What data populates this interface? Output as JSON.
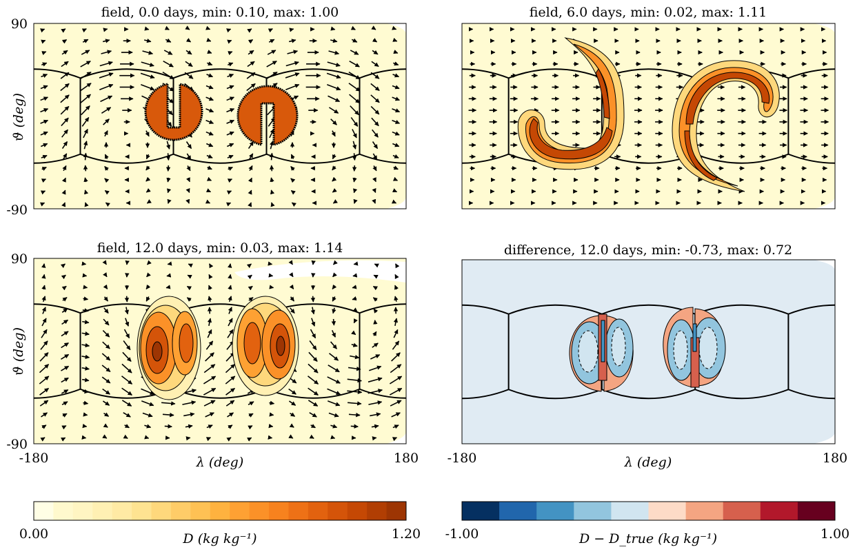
{
  "chart_data": [
    {
      "type": "heatmap",
      "title": "field, 0.0 days, min: 0.10, max: 1.00",
      "ylabel": "ϑ (deg)",
      "xlabel": "",
      "xlim": [
        -180,
        180
      ],
      "ylim": [
        -90,
        90
      ],
      "yticks": [
        "90",
        "-90"
      ],
      "xticks": [],
      "colormap": "YlOrBr",
      "min": 0.1,
      "max": 1.0,
      "features": [
        {
          "kind": "slotted-cylinder",
          "center": [
            -60,
            10
          ],
          "radius": 28,
          "value": 1.0,
          "slot": "up"
        },
        {
          "kind": "slotted-cylinder",
          "center": [
            40,
            10
          ],
          "radius": 28,
          "value": 1.0,
          "slot": "down"
        }
      ],
      "vectors": true
    },
    {
      "type": "heatmap",
      "title": "field, 6.0 days, min: 0.02, max: 1.11",
      "ylabel": "",
      "xlabel": "",
      "xlim": [
        -180,
        180
      ],
      "ylim": [
        -90,
        90
      ],
      "yticks": [],
      "xticks": [],
      "colormap": "YlOrBr",
      "min": 0.02,
      "max": 1.11,
      "features": [
        {
          "kind": "hook",
          "shape": "J"
        },
        {
          "kind": "hook",
          "shape": "C"
        }
      ],
      "vectors": true
    },
    {
      "type": "heatmap",
      "title": "field, 12.0 days, min: 0.03, max: 1.14",
      "ylabel": "ϑ (deg)",
      "xlabel": "λ (deg)",
      "xlim": [
        -180,
        180
      ],
      "ylim": [
        -90,
        90
      ],
      "yticks": [
        "90",
        "-90"
      ],
      "xticks": [
        "-180",
        "180"
      ],
      "colormap": "YlOrBr",
      "min": 0.03,
      "max": 1.14,
      "features": [
        {
          "kind": "blob-pair",
          "center": [
            -60,
            -5
          ]
        },
        {
          "kind": "blob-pair",
          "center": [
            40,
            0
          ]
        }
      ],
      "vectors": true
    },
    {
      "type": "heatmap",
      "title": "difference, 12.0 days, min: -0.73, max: 0.72",
      "ylabel": "",
      "xlabel": "λ (deg)",
      "xlim": [
        -180,
        180
      ],
      "ylim": [
        -90,
        90
      ],
      "yticks": [],
      "xticks": [
        "-180",
        "180"
      ],
      "colormap": "RdBu_r",
      "min": -0.73,
      "max": 0.72,
      "features": [
        {
          "kind": "dipole",
          "center": [
            -60,
            -5
          ]
        },
        {
          "kind": "dipole",
          "center": [
            40,
            0
          ]
        }
      ],
      "vectors": false
    }
  ],
  "colorbars": [
    {
      "label": "D (kg kg⁻¹)",
      "min_label": "0.00",
      "max_label": "1.20",
      "range": [
        0.0,
        1.2
      ],
      "colors": [
        "#fffee5",
        "#fff9cd",
        "#fff5c2",
        "#fff0b3",
        "#ffeaa4",
        "#fee391",
        "#fed87c",
        "#fecc68",
        "#fec154",
        "#feb23f",
        "#fea133",
        "#fb9128",
        "#f7821e",
        "#ee7116",
        "#e2620f",
        "#d45409",
        "#c54804",
        "#b13e03",
        "#9d3503"
      ]
    },
    {
      "label": "D − D_true (kg kg⁻¹)",
      "min_label": "-1.00",
      "max_label": "1.00",
      "range": [
        -1.0,
        1.0
      ],
      "colors": [
        "#053061",
        "#2166ac",
        "#4393c3",
        "#92c5de",
        "#d1e5f0",
        "#fddbc7",
        "#f4a582",
        "#d6604d",
        "#b2182b",
        "#67001f"
      ]
    }
  ]
}
